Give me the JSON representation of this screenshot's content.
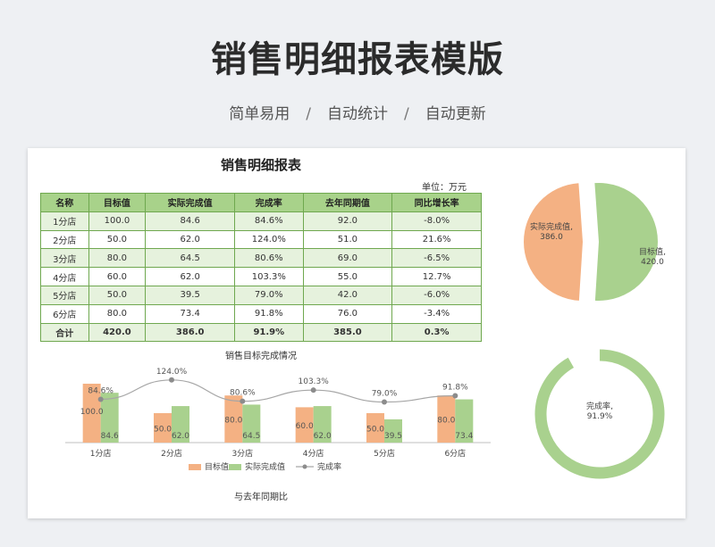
{
  "page": {
    "title": "销售明细报表模版",
    "subtitle": [
      "简单易用",
      "自动统计",
      "自动更新"
    ],
    "separator": "/"
  },
  "report": {
    "title": "销售明细报表",
    "unit": "单位：万元",
    "columns": [
      "名称",
      "目标值",
      "实际完成值",
      "完成率",
      "去年同期值",
      "同比增长率"
    ],
    "rows": [
      [
        "1分店",
        "100.0",
        "84.6",
        "84.6%",
        "92.0",
        "-8.0%"
      ],
      [
        "2分店",
        "50.0",
        "62.0",
        "124.0%",
        "51.0",
        "21.6%"
      ],
      [
        "3分店",
        "80.0",
        "64.5",
        "80.6%",
        "69.0",
        "-6.5%"
      ],
      [
        "4分店",
        "60.0",
        "62.0",
        "103.3%",
        "55.0",
        "12.7%"
      ],
      [
        "5分店",
        "50.0",
        "39.5",
        "79.0%",
        "42.0",
        "-6.0%"
      ],
      [
        "6分店",
        "80.0",
        "73.4",
        "91.8%",
        "76.0",
        "-3.4%"
      ]
    ],
    "total": [
      "合计",
      "420.0",
      "386.0",
      "91.9%",
      "385.0",
      "0.3%"
    ]
  },
  "chart_data": [
    {
      "type": "bar",
      "title": "销售目标完成情况",
      "categories": [
        "1分店",
        "2分店",
        "3分店",
        "4分店",
        "5分店",
        "6分店"
      ],
      "series": [
        {
          "name": "目标值",
          "values": [
            100.0,
            50.0,
            80.0,
            60.0,
            50.0,
            80.0
          ],
          "color": "#f4b183"
        },
        {
          "name": "实际完成值",
          "values": [
            84.6,
            62.0,
            64.5,
            62.0,
            39.5,
            73.4
          ],
          "color": "#a9d18e"
        },
        {
          "name": "完成率",
          "type": "line",
          "values": [
            84.6,
            124.0,
            80.6,
            103.3,
            79.0,
            91.8
          ],
          "labels": [
            "84.6%",
            "124.0%",
            "80.6%",
            "103.3%",
            "79.0%",
            "91.8%"
          ],
          "color": "#a6a6a6"
        }
      ],
      "legend": "bottom"
    },
    {
      "type": "pie",
      "slices": [
        {
          "name": "实际完成值",
          "value": 386.0,
          "label": "386.0",
          "color": "#f4b183"
        },
        {
          "name": "目标值",
          "value": 420.0,
          "label": "420.0",
          "color": "#a9d18e"
        }
      ]
    },
    {
      "type": "pie",
      "style": "doughnut",
      "slices": [
        {
          "name": "完成率",
          "value": 91.9,
          "label": "91.9%",
          "color": "#a9d18e"
        }
      ]
    }
  ],
  "yoy_label": "与去年同期比"
}
